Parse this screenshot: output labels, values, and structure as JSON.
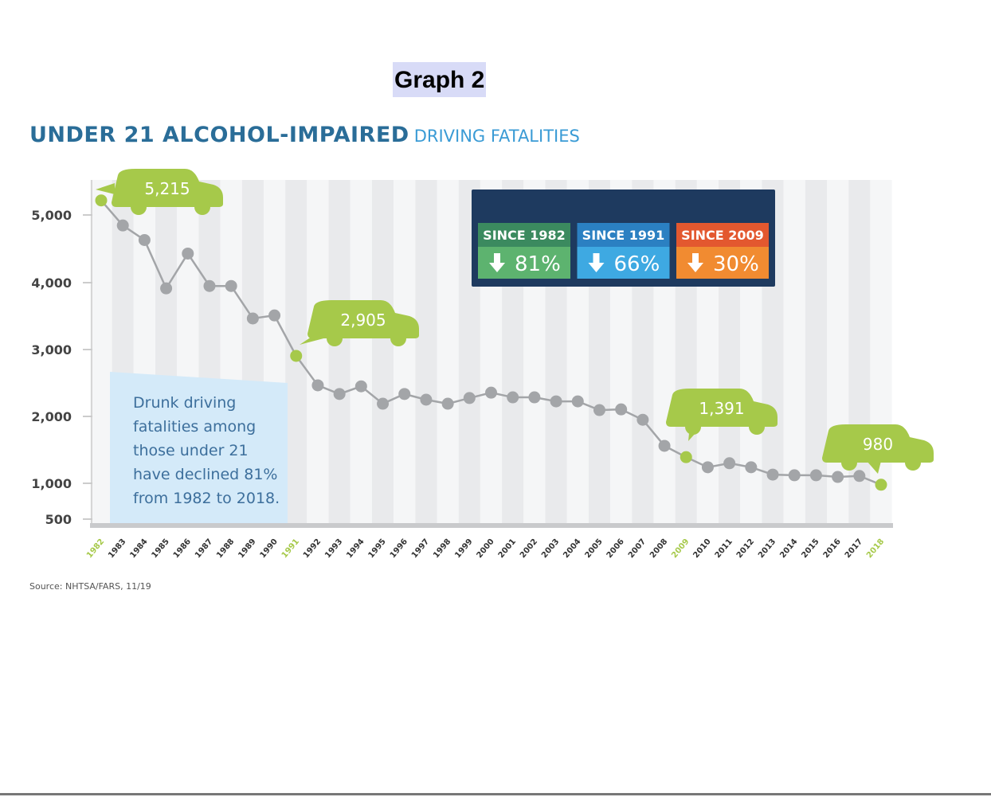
{
  "page_title": "Graph 2",
  "chart_data": {
    "type": "line",
    "title": "UNDER 21 ALCOHOL-IMPAIRED",
    "subtitle": "DRIVING FATALITIES",
    "xlabel": "",
    "ylabel": "",
    "x": [
      1982,
      1983,
      1984,
      1985,
      1986,
      1987,
      1988,
      1989,
      1990,
      1991,
      1992,
      1993,
      1994,
      1995,
      1996,
      1997,
      1998,
      1999,
      2000,
      2001,
      2002,
      2003,
      2004,
      2005,
      2006,
      2007,
      2008,
      2009,
      2010,
      2011,
      2012,
      2013,
      2014,
      2015,
      2016,
      2017,
      2018
    ],
    "values": [
      5215,
      4845,
      4630,
      3915,
      4430,
      3950,
      3950,
      3465,
      3510,
      2905,
      2465,
      2335,
      2450,
      2190,
      2335,
      2250,
      2190,
      2275,
      2355,
      2285,
      2285,
      2225,
      2225,
      2095,
      2105,
      1950,
      1560,
      1391,
      1240,
      1300,
      1240,
      1130,
      1120,
      1120,
      1095,
      1110,
      980
    ],
    "y_ticks": [
      500,
      1000,
      2000,
      3000,
      4000,
      5000
    ],
    "y_tick_labels": [
      "500",
      "1,000",
      "2,000",
      "3,000",
      "4,000",
      "5,000"
    ],
    "highlight_years": [
      1982,
      1991,
      2009,
      2018
    ],
    "callouts": [
      {
        "year": 1982,
        "label": "5,215"
      },
      {
        "year": 1991,
        "label": "2,905"
      },
      {
        "year": 2009,
        "label": "1,391"
      },
      {
        "year": 2018,
        "label": "980"
      }
    ],
    "grid": "alternating vertical bands",
    "colors": {
      "line": "#a3a5a8",
      "point": "#a3a5a8",
      "highlight": "#a6c94a",
      "band_dark": "#e9eaec",
      "band_light": "#f5f6f7"
    }
  },
  "stats": [
    {
      "header": "SINCE 1982",
      "value": "81%",
      "icon": "arrow-down-icon",
      "header_color": "#3b8a5f",
      "body_color": "#5db36f"
    },
    {
      "header": "SINCE 1991",
      "value": "66%",
      "icon": "arrow-down-icon",
      "header_color": "#2b80c2",
      "body_color": "#3ea9e2"
    },
    {
      "header": "SINCE 2009",
      "value": "30%",
      "icon": "arrow-down-icon",
      "header_color": "#e3582f",
      "body_color": "#f18b31"
    }
  ],
  "note": [
    "Drunk driving",
    "fatalities among",
    "those under 21",
    "have declined 81%",
    "from 1982 to 2018."
  ],
  "source": "Source: NHTSA/FARS, 11/19"
}
